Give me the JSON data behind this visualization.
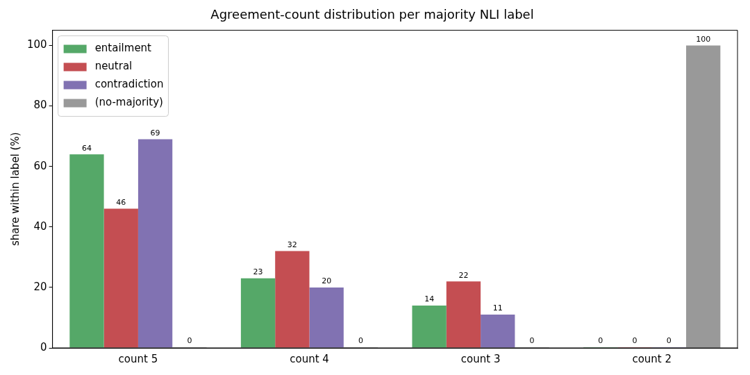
{
  "chart_data": {
    "type": "bar",
    "title": "Agreement-count distribution per majority NLI label",
    "ylabel": "share within label (%)",
    "categories": [
      "count 5",
      "count 4",
      "count 3",
      "count 2"
    ],
    "series": [
      {
        "name": "entailment",
        "color": "#55a868",
        "values": [
          64,
          23,
          14,
          0
        ]
      },
      {
        "name": "neutral",
        "color": "#c44e52",
        "values": [
          46,
          32,
          22,
          0
        ]
      },
      {
        "name": "contradiction",
        "color": "#8172b2",
        "values": [
          69,
          20,
          11,
          0
        ]
      },
      {
        "name": "(no-majority)",
        "color": "#999999",
        "values": [
          0,
          0,
          0,
          100
        ]
      }
    ],
    "ylim": [
      0,
      105
    ],
    "yticks": [
      0,
      20,
      40,
      60,
      80,
      100
    ],
    "grid": false,
    "legend": "top left",
    "data_labels": true
  }
}
